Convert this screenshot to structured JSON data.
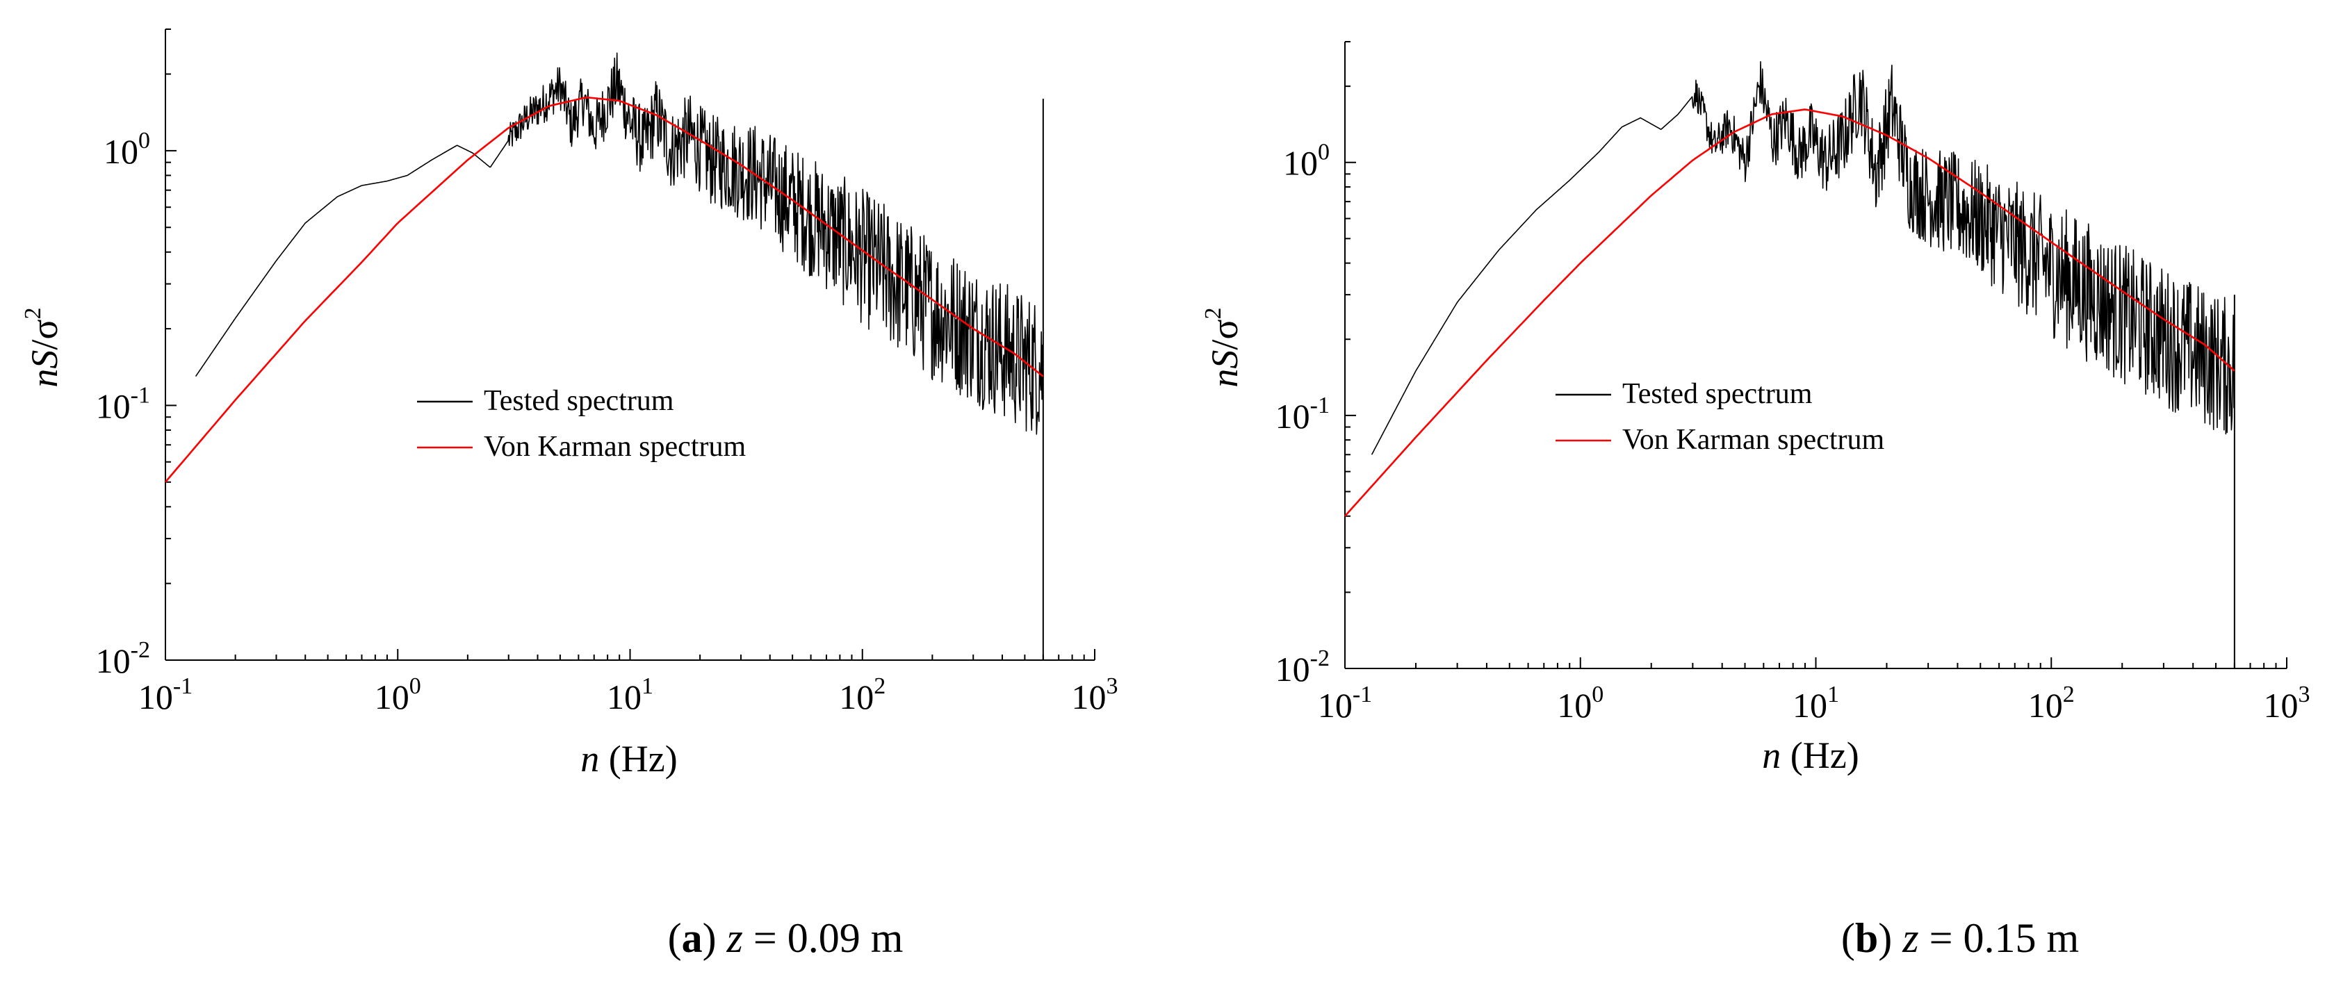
{
  "chart_data": [
    {
      "type": "line",
      "panel_id": "a",
      "caption": {
        "label": "a",
        "variable": "z",
        "equals": " = ",
        "value": "0.09 m"
      },
      "xlabel": {
        "var": "n",
        "unit": " (Hz)"
      },
      "ylabel": {
        "var": "nS",
        "sep": "/",
        "sigma": "σ",
        "exp": "2"
      },
      "xscale": "log",
      "yscale": "log",
      "xlim": [
        0.1,
        1000
      ],
      "ylim": [
        0.01,
        3
      ],
      "x_ticks": [
        {
          "base": "10",
          "exp": "-1"
        },
        {
          "base": "10",
          "exp": "0"
        },
        {
          "base": "10",
          "exp": "1"
        },
        {
          "base": "10",
          "exp": "2"
        },
        {
          "base": "10",
          "exp": "3"
        }
      ],
      "y_ticks": [
        {
          "base": "10",
          "exp": "-2"
        },
        {
          "base": "10",
          "exp": "-1"
        },
        {
          "base": "10",
          "exp": "0"
        }
      ],
      "legend": {
        "position": "center",
        "entries": [
          {
            "label": "Tested spectrum",
            "color": "#000000"
          },
          {
            "label": "Von Karman spectrum",
            "color": "#ff0000"
          }
        ]
      },
      "series": [
        {
          "name": "Tested spectrum",
          "color": "#000000",
          "x": [
            0.135,
            0.2,
            0.3,
            0.4,
            0.55,
            0.7,
            0.9,
            1.1,
            1.4,
            1.8,
            2.1,
            2.5,
            3.0,
            3.6,
            4.3,
            5.0,
            5.6,
            6.3,
            7.0,
            7.8,
            8.8,
            10.0,
            11.5,
            13.0,
            15.0,
            18.0,
            22.0,
            27.0,
            35.0,
            45.0,
            60.0,
            80.0,
            110.0,
            150.0,
            200.0,
            280.0,
            380.0,
            480.0,
            600.0
          ],
          "y": [
            0.13,
            0.22,
            0.37,
            0.52,
            0.66,
            0.73,
            0.76,
            0.8,
            0.92,
            1.05,
            0.98,
            0.86,
            1.1,
            1.35,
            1.55,
            1.8,
            1.25,
            1.6,
            1.2,
            1.45,
            1.85,
            1.3,
            1.05,
            1.4,
            1.0,
            1.15,
            0.92,
            0.87,
            0.8,
            0.67,
            0.55,
            0.45,
            0.36,
            0.29,
            0.24,
            0.2,
            0.17,
            0.15,
            0.14
          ],
          "noise_start": 3.0,
          "spikes": [
            {
              "x": 600.0,
              "y_top": 1.6,
              "y_bottom": 0.01
            }
          ]
        },
        {
          "name": "Von Karman spectrum",
          "color": "#ff0000",
          "x": [
            0.1,
            0.2,
            0.4,
            0.7,
            1.0,
            2.0,
            3.0,
            4.5,
            6.5,
            9.0,
            13.0,
            20.0,
            30.0,
            50.0,
            80.0,
            120.0,
            200.0,
            300.0,
            450.0,
            600.0
          ],
          "y": [
            0.05,
            0.105,
            0.215,
            0.365,
            0.52,
            0.92,
            1.23,
            1.5,
            1.62,
            1.57,
            1.38,
            1.1,
            0.88,
            0.64,
            0.47,
            0.36,
            0.26,
            0.2,
            0.16,
            0.13
          ]
        }
      ]
    },
    {
      "type": "line",
      "panel_id": "b",
      "caption": {
        "label": "b",
        "variable": "z",
        "equals": " = ",
        "value": "0.15 m"
      },
      "xlabel": {
        "var": "n",
        "unit": "  (Hz)"
      },
      "ylabel": {
        "var": "nS",
        "sep": "/",
        "sigma": "σ",
        "exp": "2"
      },
      "xscale": "log",
      "yscale": "log",
      "xlim": [
        0.1,
        1000
      ],
      "ylim": [
        0.01,
        3
      ],
      "x_ticks": [
        {
          "base": "10",
          "exp": "-1"
        },
        {
          "base": "10",
          "exp": "0"
        },
        {
          "base": "10",
          "exp": "1"
        },
        {
          "base": "10",
          "exp": "2"
        },
        {
          "base": "10",
          "exp": "3"
        }
      ],
      "y_ticks": [
        {
          "base": "10",
          "exp": "-2"
        },
        {
          "base": "10",
          "exp": "-1"
        },
        {
          "base": "10",
          "exp": "0"
        }
      ],
      "legend": {
        "position": "center",
        "entries": [
          {
            "label": "Tested spectrum",
            "color": "#000000"
          },
          {
            "label": "Von Karman spectrum",
            "color": "#ff0000"
          }
        ]
      },
      "series": [
        {
          "name": "Tested spectrum",
          "color": "#000000",
          "x": [
            0.13,
            0.2,
            0.3,
            0.45,
            0.65,
            0.9,
            1.2,
            1.5,
            1.8,
            2.2,
            2.6,
            3.1,
            3.7,
            4.3,
            5.0,
            5.8,
            6.6,
            7.5,
            8.5,
            9.5,
            11.0,
            13.0,
            15.5,
            18.0,
            21.0,
            25.0,
            30.0,
            38.0,
            50.0,
            70.0,
            100.0,
            150.0,
            220.0,
            320.0,
            450.0,
            600.0
          ],
          "y": [
            0.07,
            0.15,
            0.28,
            0.45,
            0.65,
            0.85,
            1.1,
            1.38,
            1.5,
            1.35,
            1.55,
            1.9,
            1.15,
            1.4,
            1.0,
            2.1,
            1.2,
            1.5,
            1.05,
            1.3,
            1.0,
            1.2,
            1.9,
            0.9,
            1.7,
            0.82,
            0.73,
            0.68,
            0.6,
            0.48,
            0.38,
            0.3,
            0.24,
            0.2,
            0.17,
            0.15
          ],
          "noise_start": 3.0,
          "spikes": [
            {
              "x": 600.0,
              "y_top": 0.3,
              "y_bottom": 0.01
            }
          ]
        },
        {
          "name": "Von Karman spectrum",
          "color": "#ff0000",
          "x": [
            0.1,
            0.2,
            0.4,
            0.7,
            1.0,
            2.0,
            3.0,
            4.5,
            6.5,
            9.0,
            13.0,
            20.0,
            30.0,
            50.0,
            80.0,
            120.0,
            200.0,
            300.0,
            450.0,
            600.0
          ],
          "y": [
            0.04,
            0.082,
            0.165,
            0.285,
            0.4,
            0.74,
            1.02,
            1.32,
            1.55,
            1.62,
            1.52,
            1.28,
            1.04,
            0.76,
            0.56,
            0.43,
            0.31,
            0.24,
            0.19,
            0.15
          ]
        }
      ]
    }
  ]
}
